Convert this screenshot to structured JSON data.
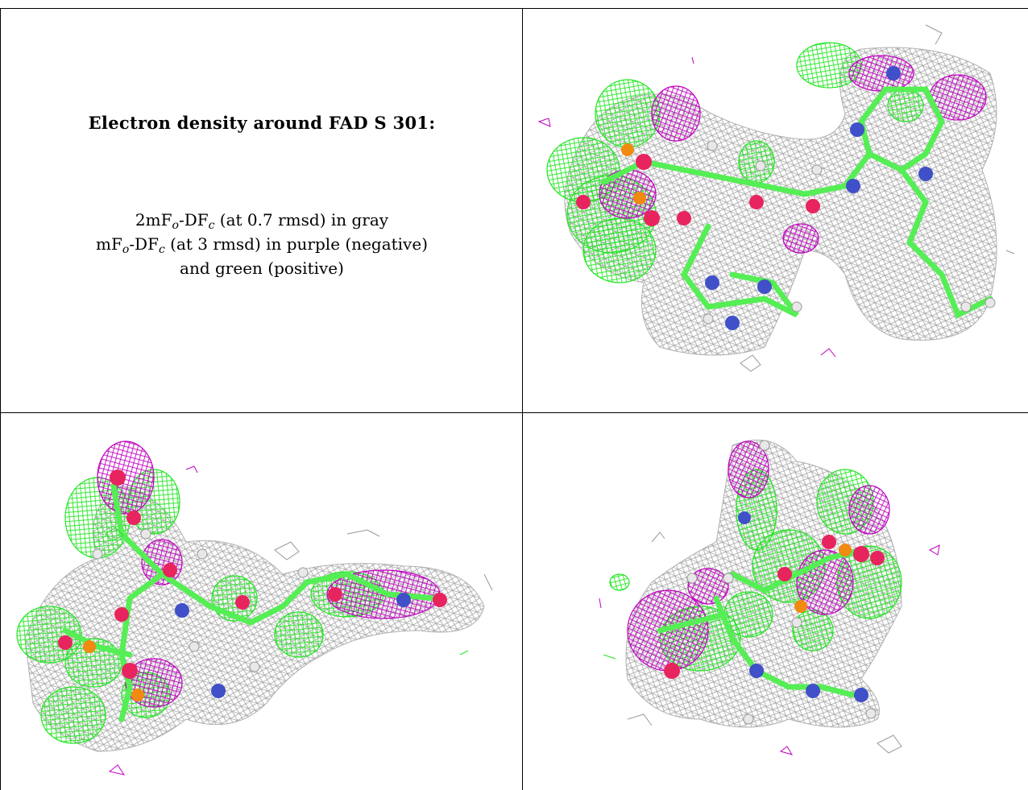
{
  "caption": {
    "title": "Electron density around FAD S 301:",
    "line1": {
      "prefix": "2mF",
      "sub1": "o",
      "middle": "-DF",
      "sub2": "c",
      "suffix": " (at 0.7 rmsd) in gray"
    },
    "line2": {
      "prefix": "mF",
      "sub1": "o",
      "middle": "-DF",
      "sub2": "c",
      "suffix": " (at 3 rmsd) in purple (negative)"
    },
    "line3": "and green (positive)"
  },
  "panels": [
    {
      "name": "panel-top-right",
      "view": "front view"
    },
    {
      "name": "panel-bottom-left",
      "view": "side view"
    },
    {
      "name": "panel-bottom-right",
      "view": "end view"
    }
  ],
  "colors": {
    "map_2fofc": "#9a9a9a",
    "map_negative": "#c000c0",
    "map_positive": "#22e622",
    "carbon": "#55ee55",
    "oxygen": "#e8245e",
    "nitrogen": "#4050c8",
    "phosphorus": "#f08a10",
    "hydrogen": "#e8e8e8"
  }
}
